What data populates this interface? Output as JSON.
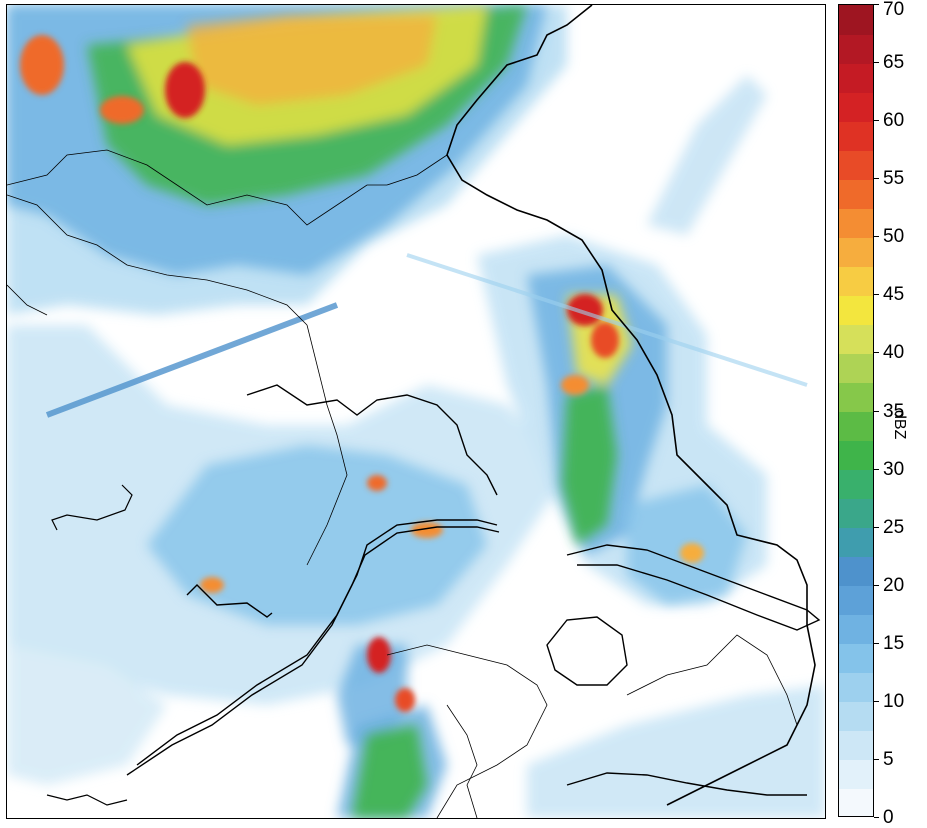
{
  "colorbar": {
    "unit_label": "dBZ",
    "ticks": [
      "0",
      "5",
      "10",
      "15",
      "20",
      "25",
      "30",
      "35",
      "40",
      "45",
      "50",
      "55",
      "60",
      "65",
      "70"
    ],
    "colors": [
      "#f4f9fd",
      "#e2f1fa",
      "#cde7f6",
      "#b5dcf2",
      "#9dd0ee",
      "#84c3ea",
      "#6fb2e2",
      "#5da1d8",
      "#4e92cc",
      "#3f9dae",
      "#3aa78a",
      "#39b06c",
      "#3fb44a",
      "#5cbb45",
      "#86c84a",
      "#aed355",
      "#d6e05a",
      "#f3e63e",
      "#f7cc43",
      "#f6ad3e",
      "#f48d33",
      "#ef6a2a",
      "#e84b27",
      "#df3224",
      "#d42224",
      "#c51b24",
      "#b31824",
      "#9e1521"
    ],
    "min": 0,
    "max": 70
  },
  "map": {
    "reflectivity_colors": {
      "light": "#b9def3",
      "mid_blue": "#6fb2e2",
      "blue": "#4e92cc",
      "green": "#3fb44a",
      "yellow": "#f3e63e",
      "orange": "#f48d33",
      "red": "#d42224"
    },
    "outline_color": "#000000"
  }
}
